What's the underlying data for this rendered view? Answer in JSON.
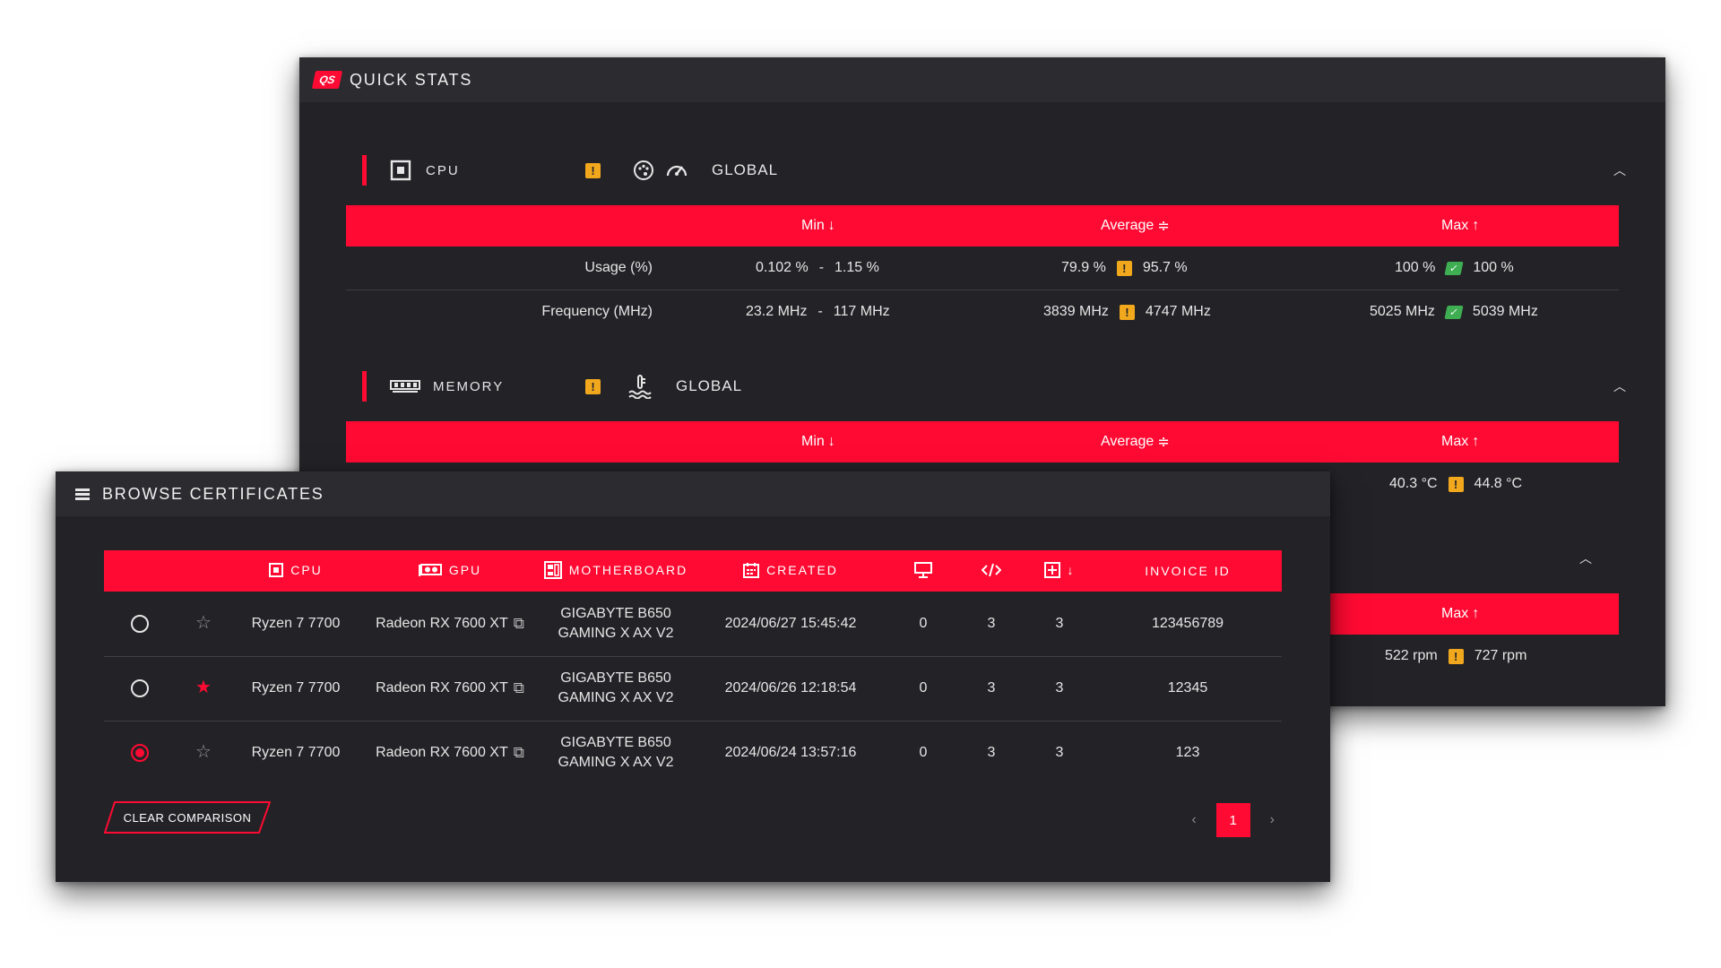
{
  "quick_stats": {
    "logo_text": "QS",
    "title": "QUICK STATS",
    "cpu": {
      "label": "CPU",
      "warn_symbol": "!",
      "scope": "GLOBAL",
      "columns": {
        "min": "Min",
        "average": "Average",
        "max": "Max"
      },
      "rows": [
        {
          "label": "Usage (%)",
          "min_low": "0.102 %",
          "min_sep": "-",
          "min_high": "1.15 %",
          "avg_low": "79.9 %",
          "avg_high": "95.7 %",
          "max_low": "100 %",
          "max_high": "100 %"
        },
        {
          "label": "Frequency (MHz)",
          "min_low": "23.2 MHz",
          "min_sep": "-",
          "min_high": "117 MHz",
          "avg_low": "3839 MHz",
          "avg_high": "4747 MHz",
          "max_low": "5025 MHz",
          "max_high": "5039 MHz"
        }
      ]
    },
    "memory": {
      "label": "MEMORY",
      "scope": "GLOBAL",
      "columns": {
        "min": "Min",
        "average": "Average",
        "max": "Max"
      },
      "visible_row": {
        "max_low": "40.3 °C",
        "max_high": "44.8 °C"
      }
    },
    "fans": {
      "max_label": "Max",
      "visible_row": {
        "max_low": "522 rpm",
        "max_high": "727 rpm"
      }
    }
  },
  "browse": {
    "title": "BROWSE CERTIFICATES",
    "headers": {
      "cpu": "CPU",
      "gpu": "GPU",
      "motherboard": "MOTHERBOARD",
      "created": "CREATED",
      "invoice": "INVOICE ID"
    },
    "rows": [
      {
        "selected": false,
        "starred": false,
        "cpu": "Ryzen 7 7700",
        "gpu": "Radeon RX 7600 XT",
        "mb_line1": "GIGABYTE B650",
        "mb_line2": "GAMING X AX V2",
        "created": "2024/06/27 15:45:42",
        "displays": "0",
        "code": "3",
        "added": "3",
        "invoice": "123456789"
      },
      {
        "selected": false,
        "starred": true,
        "cpu": "Ryzen 7 7700",
        "gpu": "Radeon RX 7600 XT",
        "mb_line1": "GIGABYTE B650",
        "mb_line2": "GAMING X AX V2",
        "created": "2024/06/26 12:18:54",
        "displays": "0",
        "code": "3",
        "added": "3",
        "invoice": "12345"
      },
      {
        "selected": true,
        "starred": false,
        "cpu": "Ryzen 7 7700",
        "gpu": "Radeon RX 7600 XT",
        "mb_line1": "GIGABYTE B650",
        "mb_line2": "GAMING X AX V2",
        "created": "2024/06/24 13:57:16",
        "displays": "0",
        "code": "3",
        "added": "3",
        "invoice": "123"
      }
    ],
    "clear_button": "CLEAR COMPARISON",
    "pagination": {
      "prev": "‹",
      "current": "1",
      "next": "›"
    }
  },
  "colors": {
    "accent": "#ff0a32",
    "panel": "#232327",
    "header": "#2c2c30",
    "warning": "#f2a81d",
    "ok": "#3fae52"
  }
}
